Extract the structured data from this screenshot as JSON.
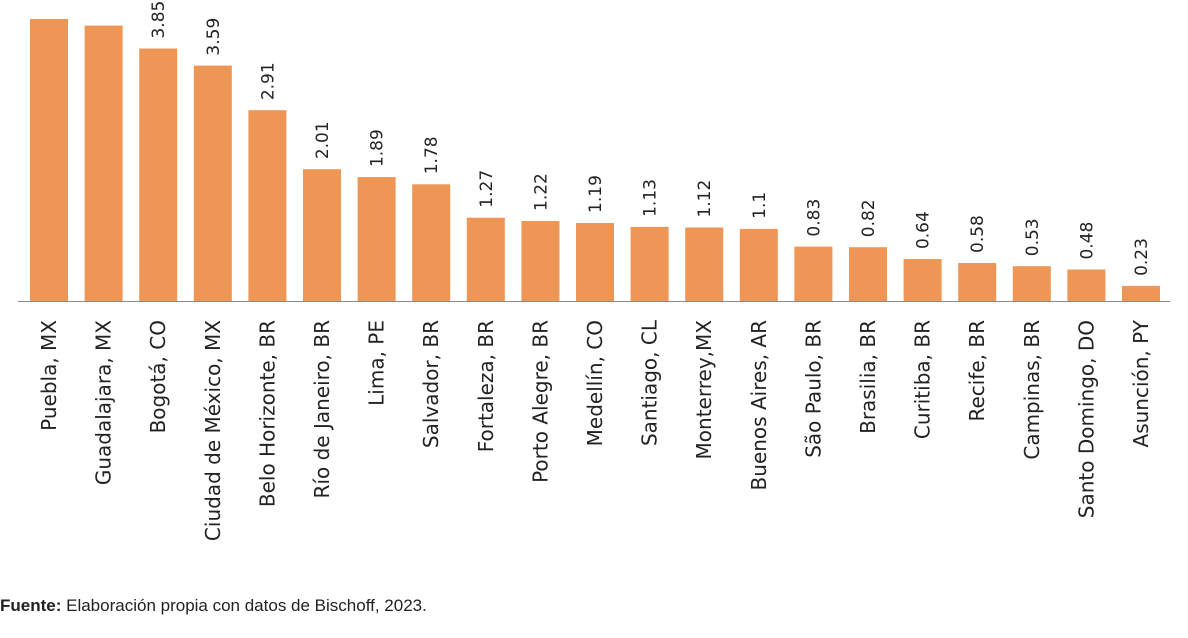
{
  "colors": {
    "bar": "#ED9655",
    "axis": "#8A8A8A",
    "text": "#222222"
  },
  "chart_data": {
    "type": "bar",
    "title": "",
    "xlabel": "",
    "ylabel": "",
    "grid": false,
    "orientation": "vertical",
    "categories": [
      "Puebla, MX",
      "Guadalajara, MX",
      "Bogotá, CO",
      "Ciudad de México, MX",
      "Belo Horizonte, BR",
      "Río de Janeiro, BR",
      "Lima, PE",
      "Salvador, BR",
      "Fortaleza, BR",
      "Porto Alegre, BR",
      "Medellín, CO",
      "Santiago, CL",
      "Monterrey,MX",
      "Buenos Aires, AR",
      "São Paulo, BR",
      "Brasilia, BR",
      "Curitiba, BR",
      "Recife, BR",
      "Campinas, BR",
      "Santo Domingo, DO",
      "Asunción, PY"
    ],
    "values": [
      4.3,
      4.2,
      3.85,
      3.59,
      2.91,
      2.01,
      1.89,
      1.78,
      1.27,
      1.22,
      1.19,
      1.13,
      1.12,
      1.1,
      0.83,
      0.82,
      0.64,
      0.58,
      0.53,
      0.48,
      0.23
    ],
    "value_labels": [
      "",
      "",
      "3.85",
      "3.59",
      "2.91",
      "2.01",
      "1.89",
      "1.78",
      "1.27",
      "1.22",
      "1.19",
      "1.13",
      "1.12",
      "1.1",
      "0.83",
      "0.82",
      "0.64",
      "0.58",
      "0.53",
      "0.48",
      "0.23"
    ],
    "ylim": [
      0,
      4.3
    ]
  },
  "source": {
    "label": "Fuente:",
    "text": " Elaboración propia con datos de Bischoff, 2023."
  }
}
